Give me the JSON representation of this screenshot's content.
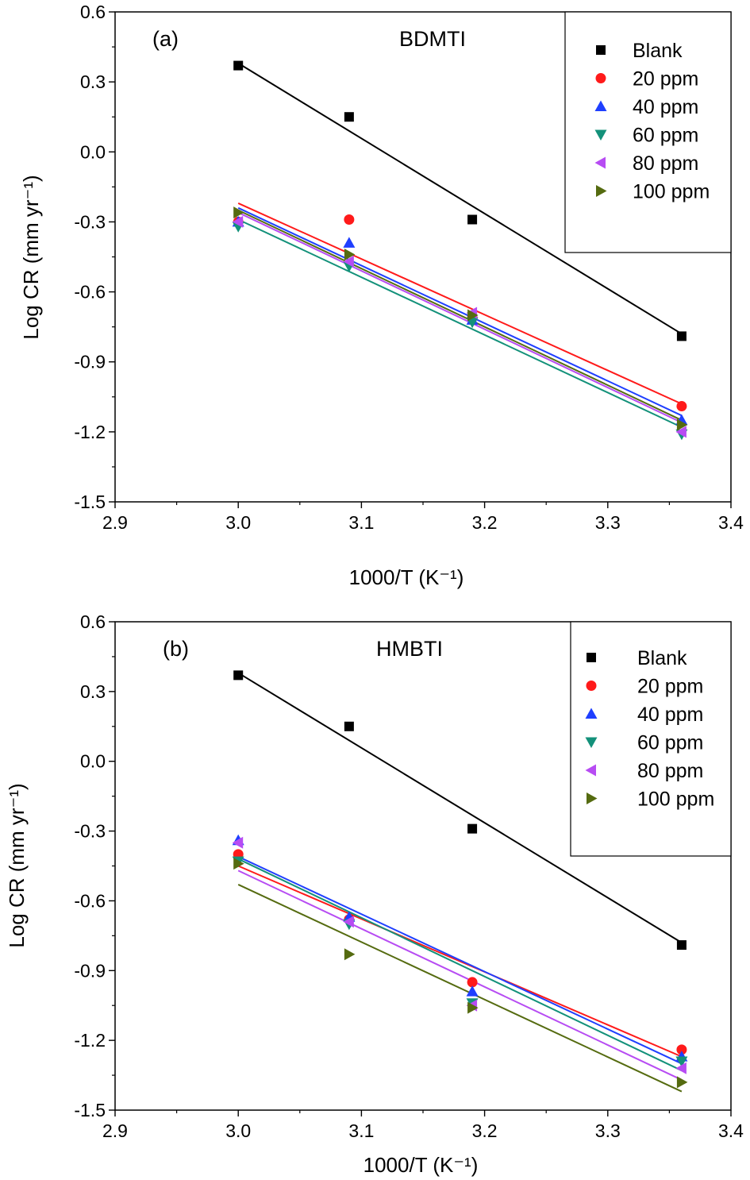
{
  "chart_data": [
    {
      "type": "scatter",
      "panel_label": "(a)",
      "title": "BDMTI",
      "xlabel": "1000/T (K⁻¹)",
      "ylabel": "Log CR (mm yr⁻¹)",
      "xlim": [
        2.9,
        3.4
      ],
      "ylim": [
        -1.5,
        0.6
      ],
      "xticks": [
        "2.9",
        "3.0",
        "3.1",
        "3.2",
        "3.3",
        "3.4"
      ],
      "yticks": [
        "0.6",
        "0.3",
        "0.0",
        "-0.3",
        "-0.6",
        "-0.9",
        "-1.2",
        "-1.5"
      ],
      "grid": false,
      "legend_position": "top-right",
      "x": [
        3.0,
        3.09,
        3.19,
        3.36
      ],
      "series": [
        {
          "name": "Blank",
          "color": "#000000",
          "marker": "square",
          "y": [
            0.37,
            0.15,
            -0.29,
            -0.79
          ],
          "fit": [
            0.38,
            -0.78
          ]
        },
        {
          "name": "20 ppm",
          "color": "#ff1a1a",
          "marker": "circle",
          "y": [
            -0.3,
            -0.29,
            -0.71,
            -1.09
          ],
          "fit": [
            -0.22,
            -1.08
          ]
        },
        {
          "name": "40 ppm",
          "color": "#1f3fff",
          "marker": "triangle-up",
          "y": [
            -0.3,
            -0.39,
            -0.72,
            -1.15
          ],
          "fit": [
            -0.24,
            -1.13
          ]
        },
        {
          "name": "60 ppm",
          "color": "#13917a",
          "marker": "triangle-down",
          "y": [
            -0.32,
            -0.49,
            -0.73,
            -1.21
          ],
          "fit": [
            -0.29,
            -1.18
          ]
        },
        {
          "name": "80 ppm",
          "color": "#b74cf3",
          "marker": "triangle-left",
          "y": [
            -0.3,
            -0.47,
            -0.69,
            -1.2
          ],
          "fit": [
            -0.26,
            -1.16
          ]
        },
        {
          "name": "100 ppm",
          "color": "#556b10",
          "marker": "triangle-right",
          "y": [
            -0.26,
            -0.44,
            -0.7,
            -1.17
          ],
          "fit": [
            -0.25,
            -1.15
          ]
        }
      ]
    },
    {
      "type": "scatter",
      "panel_label": "(b)",
      "title": "HMBTI",
      "xlabel": "1000/T (K⁻¹)",
      "ylabel": "Log CR (mm yr⁻¹)",
      "xlim": [
        2.9,
        3.4
      ],
      "ylim": [
        -1.5,
        0.6
      ],
      "xticks": [
        "2.9",
        "3.0",
        "3.1",
        "3.2",
        "3.3",
        "3.4"
      ],
      "yticks": [
        "0.6",
        "0.3",
        "0.0",
        "-0.3",
        "-0.6",
        "-0.9",
        "-1.2",
        "-1.5"
      ],
      "grid": false,
      "legend_position": "top-right",
      "x": [
        3.0,
        3.09,
        3.19,
        3.36
      ],
      "series": [
        {
          "name": "Blank",
          "color": "#000000",
          "marker": "square",
          "y": [
            0.37,
            0.15,
            -0.29,
            -0.79
          ],
          "fit": [
            0.38,
            -0.78
          ]
        },
        {
          "name": "20 ppm",
          "color": "#ff1a1a",
          "marker": "circle",
          "y": [
            -0.4,
            -0.68,
            -0.95,
            -1.24
          ],
          "fit": [
            -0.45,
            -1.27
          ]
        },
        {
          "name": "40 ppm",
          "color": "#1f3fff",
          "marker": "triangle-up",
          "y": [
            -0.34,
            -0.67,
            -0.99,
            -1.27
          ],
          "fit": [
            -0.41,
            -1.3
          ]
        },
        {
          "name": "60 ppm",
          "color": "#13917a",
          "marker": "triangle-down",
          "y": [
            -0.43,
            -0.7,
            -1.04,
            -1.29
          ],
          "fit": [
            -0.42,
            -1.33
          ]
        },
        {
          "name": "80 ppm",
          "color": "#b74cf3",
          "marker": "triangle-left",
          "y": [
            -0.35,
            -0.69,
            -1.05,
            -1.32
          ],
          "fit": [
            -0.47,
            -1.37
          ]
        },
        {
          "name": "100 ppm",
          "color": "#556b10",
          "marker": "triangle-right",
          "y": [
            -0.44,
            -0.83,
            -1.06,
            -1.38
          ],
          "fit": [
            -0.53,
            -1.42
          ]
        }
      ]
    }
  ]
}
